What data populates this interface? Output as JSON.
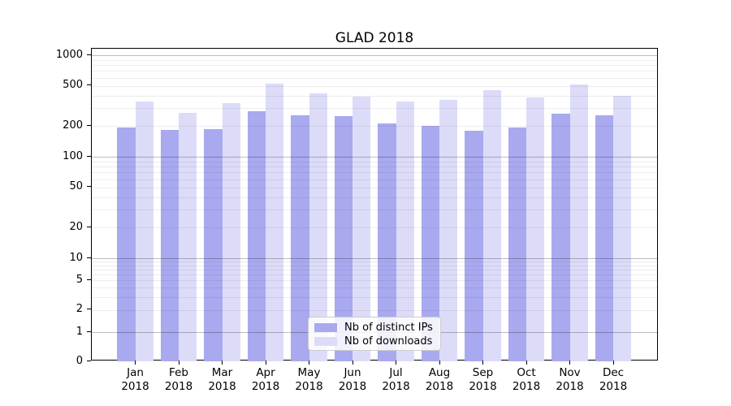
{
  "chart_data": {
    "type": "bar",
    "title": "GLAD 2018",
    "categories": [
      "Jan 2018",
      "Feb 2018",
      "Mar 2018",
      "Apr 2018",
      "May 2018",
      "Jun 2018",
      "Jul 2018",
      "Aug 2018",
      "Sep 2018",
      "Oct 2018",
      "Nov 2018",
      "Dec 2018"
    ],
    "series": [
      {
        "name": "Nb of distinct IPs",
        "color": "#a9a9f0",
        "values": [
          193,
          184,
          187,
          280,
          256,
          253,
          212,
          203,
          179,
          193,
          267,
          256
        ]
      },
      {
        "name": "Nb of downloads",
        "color": "#dcdcf9",
        "values": [
          350,
          270,
          340,
          520,
          423,
          392,
          348,
          362,
          453,
          382,
          519,
          398
        ]
      }
    ],
    "xlabel": "",
    "ylabel": "",
    "yscale": "symlog",
    "yticks": [
      0,
      1,
      2,
      5,
      10,
      20,
      50,
      100,
      200,
      500,
      1000
    ],
    "ylim": [
      0,
      1100
    ],
    "grid": "both",
    "legend_position": "lower center",
    "colors": {
      "major_gridline": "#bdbdbd",
      "minor_gridline": "#ededed",
      "axes_edge": "#000000",
      "background": "#ffffff"
    }
  }
}
